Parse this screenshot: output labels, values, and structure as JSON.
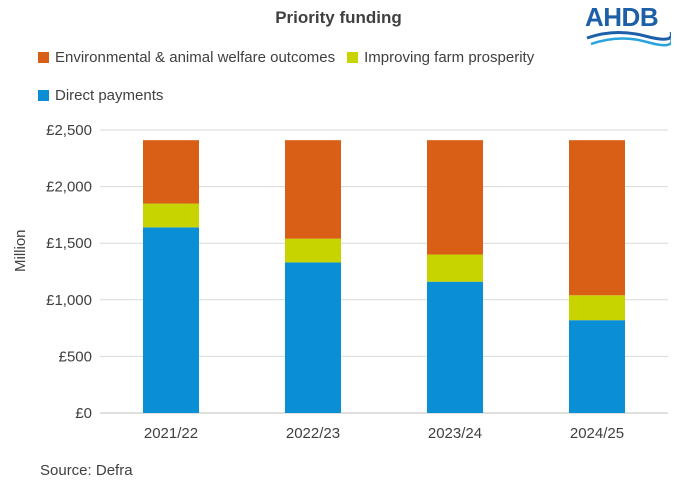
{
  "chart_data": {
    "type": "bar",
    "stacked": true,
    "title": "Priority funding",
    "ylabel": "Million",
    "xlabel": "",
    "categories": [
      "2021/22",
      "2022/23",
      "2023/24",
      "2024/25"
    ],
    "series": [
      {
        "name": "Direct payments",
        "color": "#0a8fd6",
        "values": [
          1640,
          1330,
          1160,
          820
        ]
      },
      {
        "name": "Improving farm prosperity",
        "color": "#c8d400",
        "values": [
          210,
          210,
          240,
          220
        ]
      },
      {
        "name": "Environmental & animal welfare outcomes",
        "color": "#d95f17",
        "values": [
          560,
          870,
          1010,
          1370
        ]
      }
    ],
    "ylim": [
      0,
      2500
    ],
    "yticks": [
      "£0",
      "£500",
      "£1,000",
      "£1,500",
      "£2,000",
      "£2,500"
    ],
    "ytick_values": [
      0,
      500,
      1000,
      1500,
      2000,
      2500
    ],
    "grid": true,
    "source": "Source: Defra"
  },
  "legend": {
    "row1": [
      "Environmental & animal welfare outcomes",
      "Improving farm prosperity"
    ],
    "row2": [
      "Direct payments"
    ]
  },
  "logo": {
    "text": "AHDB"
  }
}
